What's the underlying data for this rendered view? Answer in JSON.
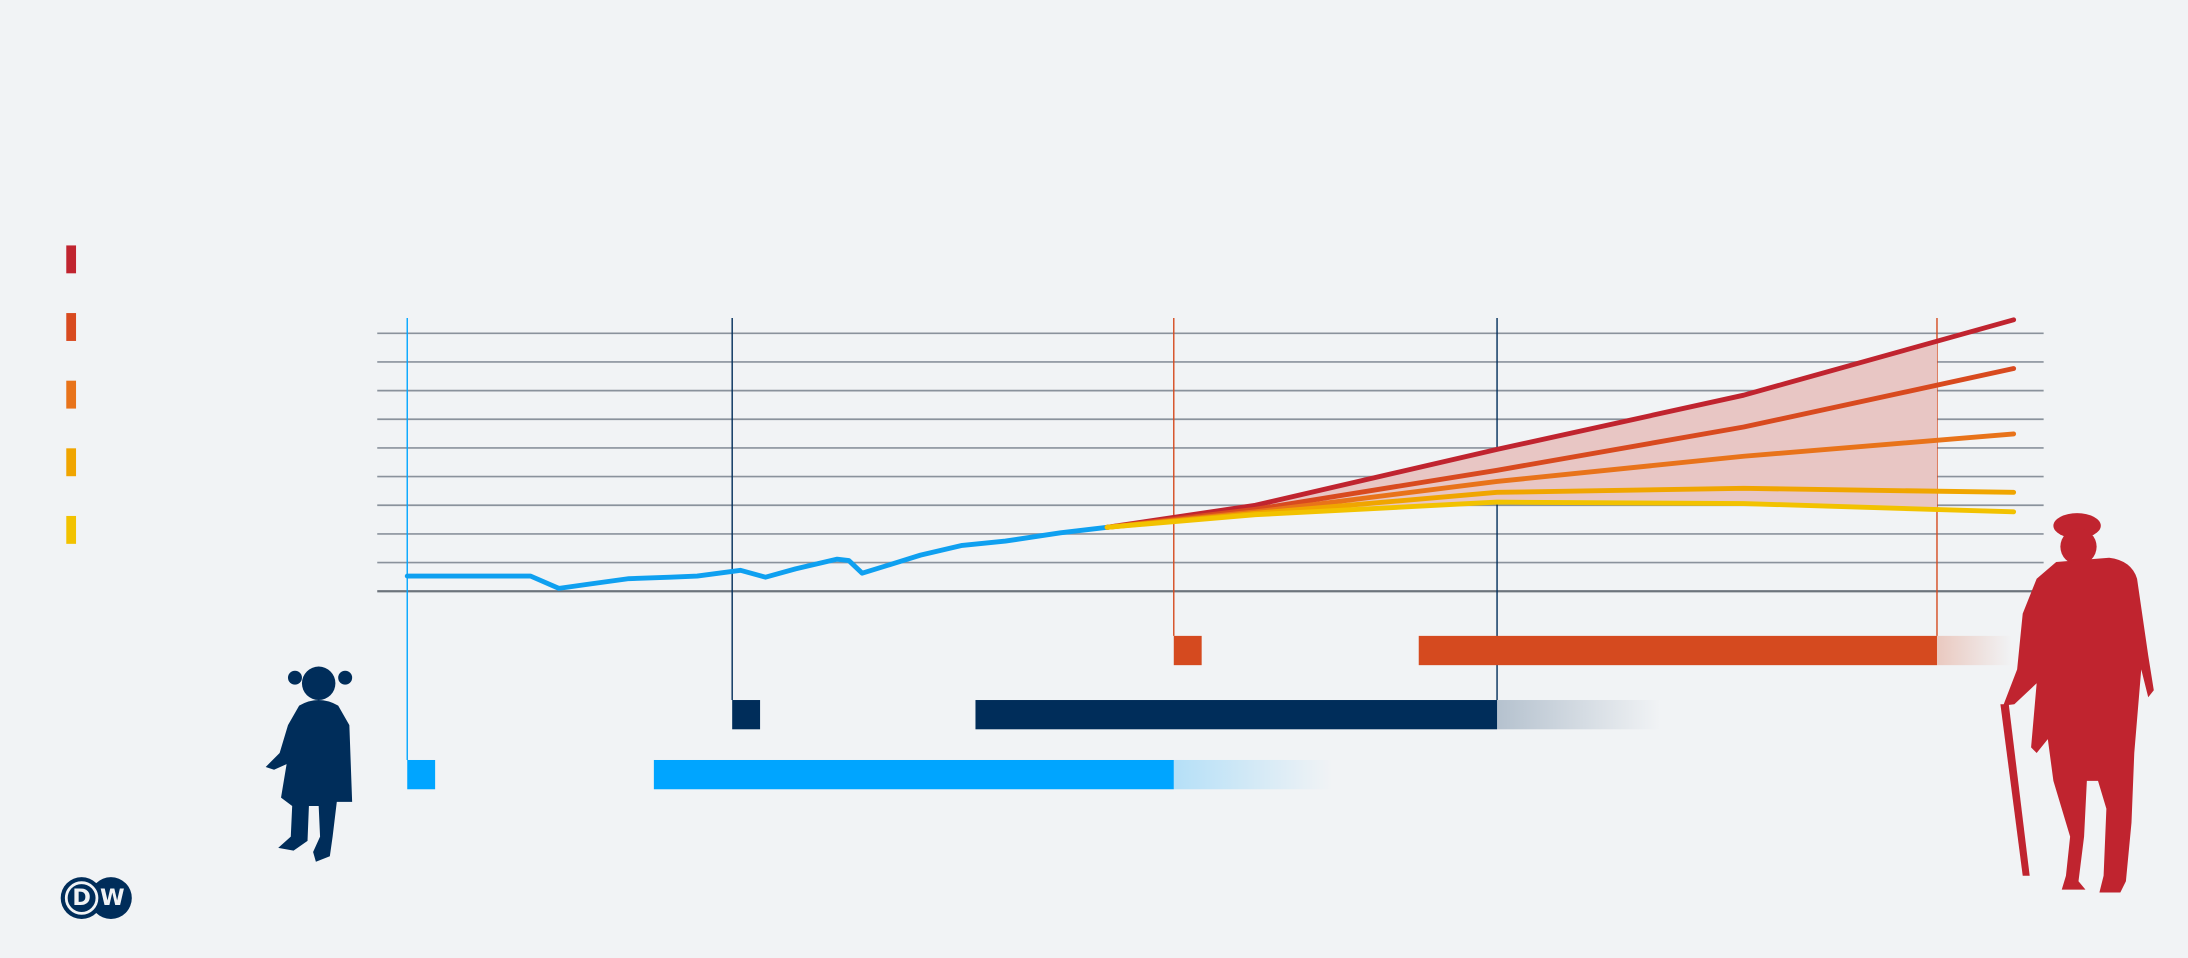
{
  "chart_data": {
    "type": "line",
    "xlim": [
      0,
      100
    ],
    "ylim": [
      0,
      9
    ],
    "yticks": [
      0,
      1,
      2,
      3,
      4,
      5,
      6,
      7,
      8,
      9
    ],
    "xticks": [
      1.8,
      21.3,
      47.8,
      67.2,
      93.6
    ],
    "xtick_colors": [
      "#00a5ff",
      "#002d5a",
      "#d54a1f",
      "#002d5a",
      "#d54a1f"
    ],
    "grid": true,
    "band_color": "#e8c6c4",
    "band_end": 93.6,
    "series": [
      {
        "color": "#0fa0f0",
        "x": [
          1.8,
          4.2,
          7.5,
          9.2,
          10.9,
          12.6,
          15.1,
          17.6,
          19.2,
          21.8,
          23.3,
          25.1,
          27.6,
          28.3,
          29.1,
          31.0,
          32.6,
          35.1,
          37.7,
          41.0,
          43.8
        ],
        "values": [
          0.53,
          0.53,
          0.53,
          0.53,
          0.1,
          0.24,
          0.44,
          0.49,
          0.53,
          0.73,
          0.49,
          0.78,
          1.12,
          1.07,
          0.63,
          0.97,
          1.26,
          1.6,
          1.75,
          2.04,
          2.23
        ]
      },
      {
        "color": "#c0242f",
        "x": [
          43.8,
          52.7,
          67.2,
          82.0,
          98.2
        ],
        "values": [
          2.23,
          3.0,
          4.95,
          6.84,
          9.47
        ]
      },
      {
        "color": "#d84a1f",
        "x": [
          43.8,
          52.7,
          67.2,
          82.0,
          98.2
        ],
        "values": [
          2.23,
          2.86,
          4.22,
          5.73,
          7.77
        ]
      },
      {
        "color": "#e8731a",
        "x": [
          43.8,
          52.7,
          67.2,
          82.0,
          98.2
        ],
        "values": [
          2.23,
          2.77,
          3.83,
          4.71,
          5.49
        ]
      },
      {
        "color": "#f0a500",
        "x": [
          43.8,
          52.7,
          67.2,
          82.0,
          98.2
        ],
        "values": [
          2.23,
          2.72,
          3.45,
          3.59,
          3.45
        ]
      },
      {
        "color": "#f2c200",
        "x": [
          43.8,
          52.7,
          67.2,
          82.0,
          98.2
        ],
        "values": [
          2.23,
          2.67,
          3.11,
          3.06,
          2.77
        ]
      }
    ],
    "bars": [
      {
        "color": "#00a5ff",
        "marker": 1.8,
        "start": 16.6,
        "end": 47.8,
        "fade": 57.3
      },
      {
        "color": "#002d5a",
        "marker": 21.3,
        "start": 35.9,
        "end": 67.2,
        "fade": 77.0
      },
      {
        "color": "#d54a1f",
        "marker": 47.8,
        "start": 62.5,
        "end": 93.6,
        "fade": 98.1
      }
    ]
  },
  "logo": {
    "left": "D",
    "right": "W"
  }
}
